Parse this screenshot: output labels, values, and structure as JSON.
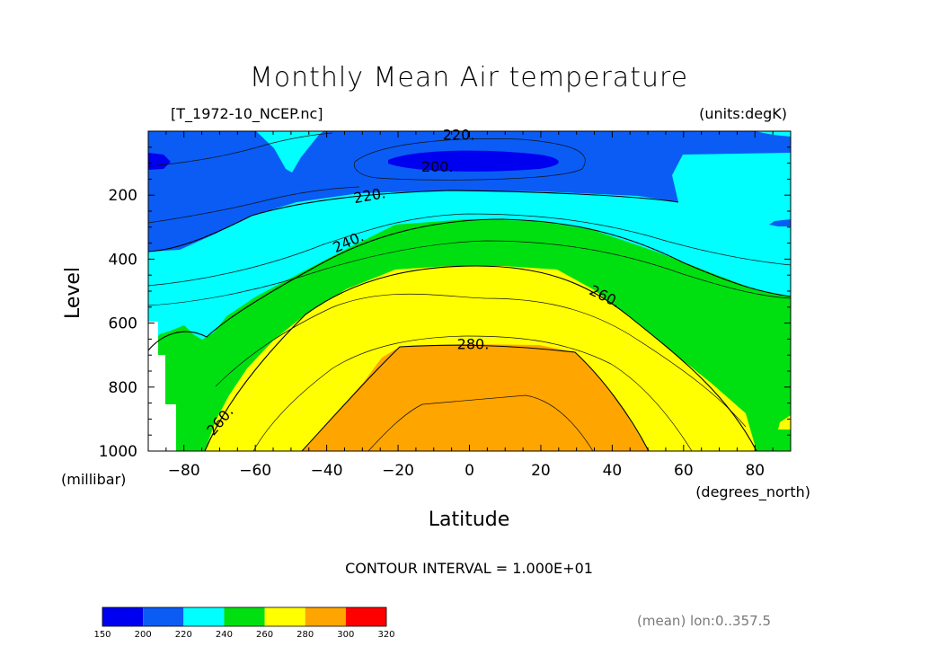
{
  "chart_data": {
    "type": "contour",
    "title": "Monthly Mean Air temperature",
    "source_file": "[T_1972-10_NCEP.nc]",
    "units_label": "(units:degK)",
    "xlabel": "Latitude",
    "x_units_label": "(degrees_north)",
    "ylabel": "Level",
    "y_units_label": "(millibar)",
    "xlim": [
      -90,
      90
    ],
    "ylim": [
      0,
      1000
    ],
    "y_inverted": true,
    "x_ticks": [
      -80,
      -60,
      -40,
      -20,
      0,
      20,
      40,
      60,
      80
    ],
    "x_tick_labels": [
      "−80",
      "−60",
      "−40",
      "−20",
      "0",
      "20",
      "40",
      "60",
      "80"
    ],
    "y_ticks": [
      200,
      400,
      600,
      800,
      1000
    ],
    "y_tick_labels": [
      "200",
      "400",
      "600",
      "800",
      "1000"
    ],
    "contour_interval_text": "CONTOUR INTERVAL = 1.000E+01",
    "contour_labels": [
      {
        "text": "220.",
        "lat": -3,
        "level": 10
      },
      {
        "text": "200.",
        "lat": -9,
        "level": 110
      },
      {
        "text": "220.",
        "lat": -28,
        "level": 200
      },
      {
        "text": "240.",
        "lat": -34,
        "level": 345
      },
      {
        "text": "260.",
        "lat": 38,
        "level": 515
      },
      {
        "text": "280.",
        "lat": 1,
        "level": 665
      },
      {
        "text": "260.",
        "lat": -70,
        "level": 905
      }
    ],
    "color_levels": [
      150,
      200,
      220,
      240,
      260,
      280,
      300,
      320
    ],
    "color_level_labels": [
      "150",
      "200",
      "220",
      "240",
      "260",
      "280",
      "300",
      "320"
    ],
    "colors": [
      "#0000f0",
      "#0a5cf5",
      "#00ffff",
      "#00e010",
      "#ffff00",
      "#ffa500",
      "#ff0000"
    ],
    "footer_mean_text": "(mean) lon:0..357.5"
  }
}
